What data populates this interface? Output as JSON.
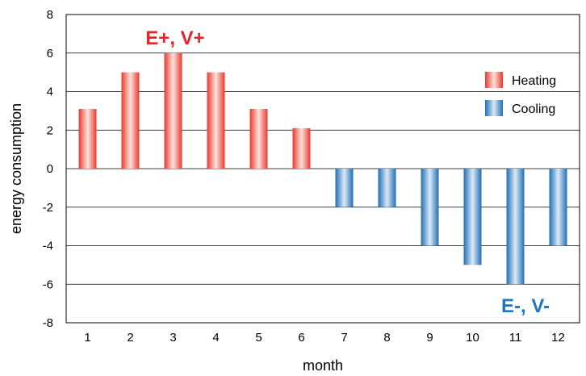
{
  "chart_data": {
    "type": "bar",
    "categories": [
      "1",
      "2",
      "3",
      "4",
      "5",
      "6",
      "7",
      "8",
      "9",
      "10",
      "11",
      "12"
    ],
    "series": [
      {
        "name": "Heating",
        "values": [
          3.1,
          5,
          6,
          5,
          3.1,
          2.1,
          null,
          null,
          null,
          null,
          null,
          null
        ],
        "color": "#e8392e"
      },
      {
        "name": "Cooling",
        "values": [
          null,
          null,
          null,
          null,
          null,
          null,
          -2,
          -2,
          -4,
          -5,
          -6,
          -4
        ],
        "color": "#1f6fb5"
      }
    ],
    "xlabel": "month",
    "ylabel": "energy consumption",
    "ylim": [
      -8,
      8
    ],
    "yticks": [
      -8,
      -6,
      -4,
      -2,
      0,
      2,
      4,
      6,
      8
    ],
    "grid": true,
    "legend": "right",
    "annotations": [
      {
        "text": "E+, V+",
        "color": "#e8262a"
      },
      {
        "text": "E-, V-",
        "color": "#1a78c2"
      }
    ]
  }
}
